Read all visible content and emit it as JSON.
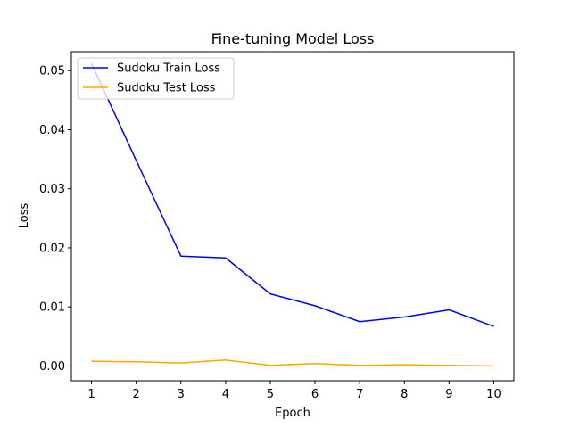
{
  "chart_data": {
    "type": "line",
    "title": "Fine-tuning Model Loss",
    "xlabel": "Epoch",
    "ylabel": "Loss",
    "x": [
      1,
      2,
      3,
      4,
      5,
      6,
      7,
      8,
      9,
      10
    ],
    "xticks": [
      "1",
      "2",
      "3",
      "4",
      "5",
      "6",
      "7",
      "8",
      "9",
      "10"
    ],
    "yticks": [
      "0.00",
      "0.01",
      "0.02",
      "0.03",
      "0.04",
      "0.05"
    ],
    "ytick_values": [
      0.0,
      0.01,
      0.02,
      0.03,
      0.04,
      0.05
    ],
    "xlim": [
      0.55,
      10.45
    ],
    "ylim": [
      -0.0025,
      0.0532
    ],
    "grid": false,
    "legend_position": "upper-left",
    "series": [
      {
        "name": "Sudoku Train Loss",
        "color": "#0000ff",
        "values": [
          0.0512,
          0.0348,
          0.0186,
          0.0183,
          0.0122,
          0.0102,
          0.0075,
          0.0083,
          0.0095,
          0.0067
        ]
      },
      {
        "name": "Sudoku Test Loss",
        "color": "#ffa500",
        "values": [
          0.0008,
          0.0007,
          0.0005,
          0.001,
          0.0001,
          0.0004,
          0.0001,
          0.0002,
          0.0001,
          0.0
        ]
      }
    ]
  }
}
